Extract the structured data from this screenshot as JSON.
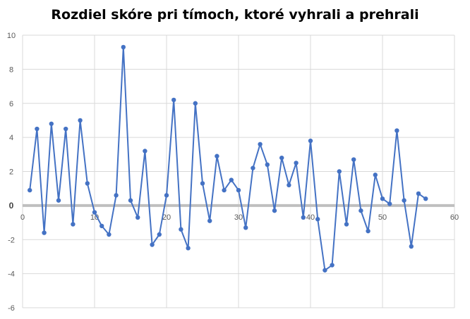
{
  "chart_data": {
    "type": "scatter",
    "title": "Rozdiel skóre pri tímoch, ktoré vyhrali a prehrali",
    "xlabel": "",
    "ylabel": "",
    "xlim": [
      0,
      60
    ],
    "ylim": [
      -6,
      10
    ],
    "x_ticks": [
      0,
      10,
      20,
      30,
      40,
      50,
      60
    ],
    "y_ticks": [
      -6,
      -4,
      -2,
      0,
      2,
      4,
      6,
      8,
      10
    ],
    "grid": true,
    "legend": "none",
    "line_color": "#4472C4",
    "zero_line_color": "#BFBFBF",
    "series": [
      {
        "x": [
          1,
          2,
          3,
          4,
          5,
          6,
          7,
          8,
          9,
          10,
          11,
          12,
          13,
          14,
          15,
          16,
          17,
          18,
          19,
          20,
          21,
          22,
          23,
          24,
          25,
          26,
          27,
          28,
          29,
          30,
          31,
          32,
          33,
          34,
          35,
          36,
          37,
          38,
          39,
          40,
          41,
          42,
          43,
          44,
          45,
          46,
          47,
          48,
          49,
          50,
          51,
          52,
          53,
          54,
          55,
          56
        ],
        "y": [
          0.9,
          4.5,
          -1.6,
          4.8,
          0.3,
          4.5,
          -1.1,
          5.0,
          1.3,
          -0.4,
          -1.2,
          -1.7,
          0.6,
          9.3,
          0.3,
          -0.7,
          3.2,
          -2.3,
          -1.7,
          0.6,
          6.2,
          -1.4,
          -2.5,
          6.0,
          1.3,
          -0.9,
          2.9,
          0.9,
          1.5,
          0.9,
          -1.3,
          2.2,
          3.6,
          2.4,
          -0.3,
          2.8,
          1.2,
          2.5,
          -0.7,
          3.8,
          -0.8,
          -3.8,
          -3.5,
          2.0,
          -1.1,
          2.7,
          -0.3,
          -1.5,
          1.8,
          0.4,
          0.1,
          4.4,
          0.3,
          -2.4,
          0.7,
          0.4
        ]
      }
    ]
  }
}
